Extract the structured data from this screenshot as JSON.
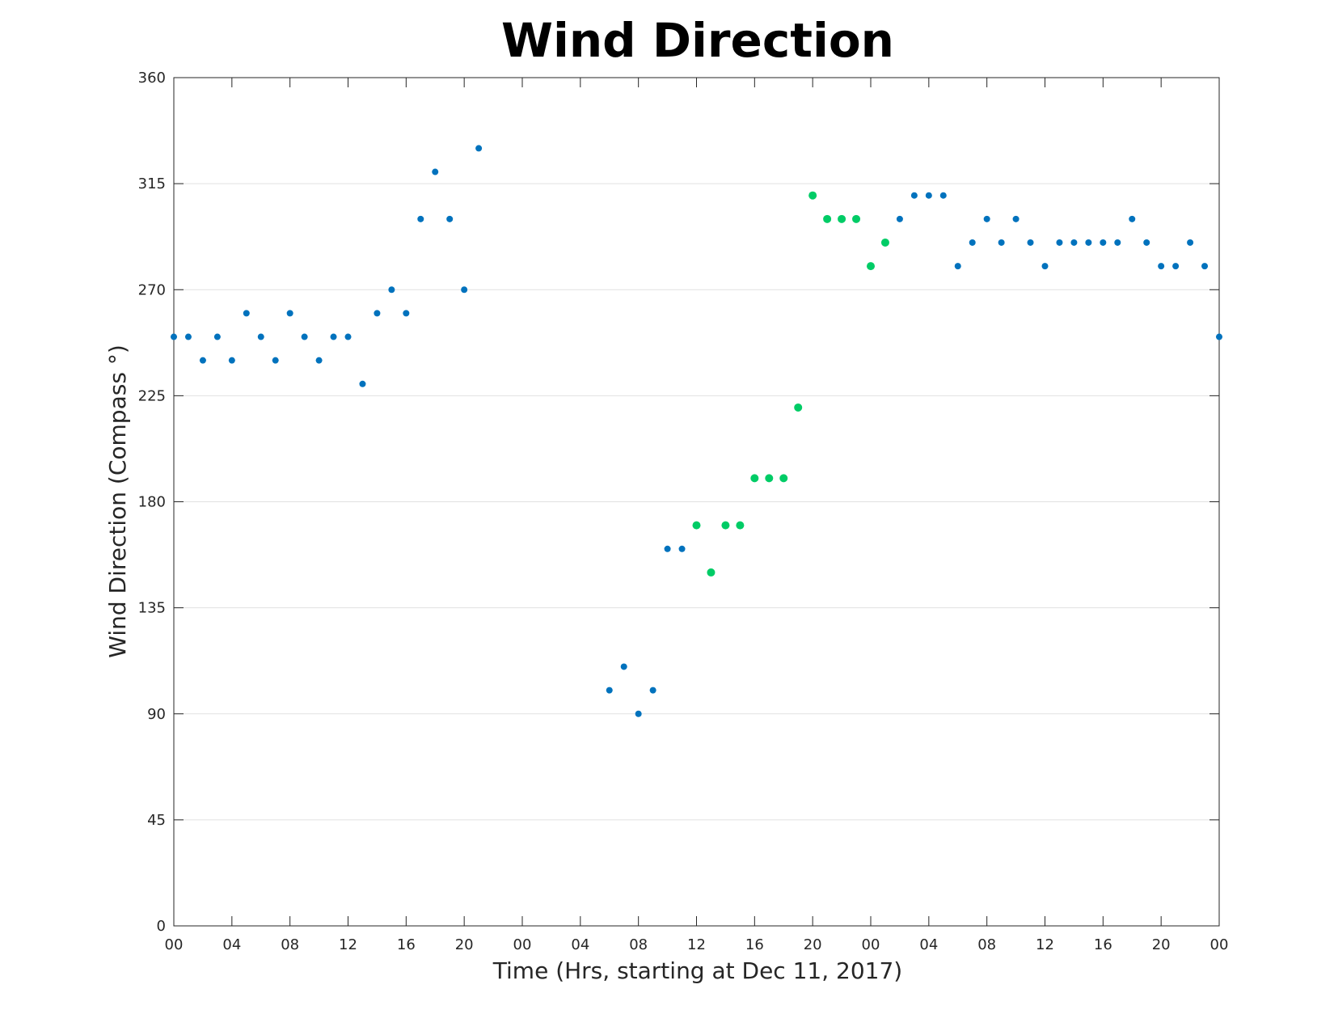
{
  "chart_data": {
    "type": "scatter",
    "title": "Wind Direction",
    "xlabel": "Time (Hrs, starting at Dec 11, 2017)",
    "ylabel": "Wind Direction (Compass °)",
    "xlim": [
      0,
      72
    ],
    "ylim": [
      0,
      360
    ],
    "x_unit": "hours",
    "x_ticks": [
      0,
      4,
      8,
      12,
      16,
      20,
      24,
      28,
      32,
      36,
      40,
      44,
      48,
      52,
      56,
      60,
      64,
      68,
      72
    ],
    "x_tick_labels": [
      "00",
      "04",
      "08",
      "12",
      "16",
      "20",
      "00",
      "04",
      "08",
      "12",
      "16",
      "20",
      "00",
      "04",
      "08",
      "12",
      "16",
      "20",
      "00"
    ],
    "y_ticks": [
      0,
      45,
      90,
      135,
      180,
      225,
      270,
      315,
      360
    ],
    "y_tick_labels": [
      "0",
      "45",
      "90",
      "135",
      "180",
      "225",
      "270",
      "315",
      "360"
    ],
    "grid": "horizontal",
    "colors": {
      "blue": "#0072BD",
      "green": "#00CC66"
    },
    "series": [
      {
        "color": "#0072BD",
        "points": [
          [
            0,
            250
          ],
          [
            1,
            250
          ],
          [
            2,
            240
          ],
          [
            3,
            250
          ],
          [
            4,
            240
          ],
          [
            5,
            260
          ],
          [
            6,
            250
          ],
          [
            7,
            240
          ],
          [
            8,
            260
          ],
          [
            9,
            250
          ],
          [
            10,
            240
          ],
          [
            11,
            250
          ],
          [
            12,
            250
          ],
          [
            13,
            230
          ],
          [
            14,
            260
          ],
          [
            15,
            270
          ],
          [
            16,
            260
          ],
          [
            17,
            300
          ],
          [
            18,
            320
          ],
          [
            19,
            300
          ],
          [
            20,
            270
          ],
          [
            21,
            330
          ],
          [
            30,
            100
          ],
          [
            31,
            110
          ],
          [
            32,
            90
          ],
          [
            33,
            100
          ],
          [
            34,
            160
          ],
          [
            35,
            160
          ],
          [
            50,
            300
          ],
          [
            51,
            310
          ],
          [
            52,
            310
          ],
          [
            53,
            310
          ],
          [
            54,
            280
          ],
          [
            55,
            290
          ],
          [
            56,
            300
          ],
          [
            57,
            290
          ],
          [
            58,
            300
          ],
          [
            59,
            290
          ],
          [
            60,
            280
          ],
          [
            61,
            290
          ],
          [
            62,
            290
          ],
          [
            63,
            290
          ],
          [
            64,
            290
          ],
          [
            65,
            290
          ],
          [
            66,
            300
          ],
          [
            67,
            290
          ],
          [
            68,
            280
          ],
          [
            69,
            280
          ],
          [
            70,
            290
          ],
          [
            71,
            280
          ],
          [
            72,
            250
          ]
        ]
      },
      {
        "color": "#00CC66",
        "points": [
          [
            36,
            170
          ],
          [
            37,
            150
          ],
          [
            38,
            170
          ],
          [
            39,
            170
          ],
          [
            40,
            190
          ],
          [
            41,
            190
          ],
          [
            42,
            190
          ],
          [
            43,
            220
          ],
          [
            44,
            310
          ],
          [
            45,
            300
          ],
          [
            46,
            300
          ],
          [
            47,
            300
          ],
          [
            48,
            280
          ],
          [
            49,
            290
          ]
        ]
      }
    ]
  }
}
